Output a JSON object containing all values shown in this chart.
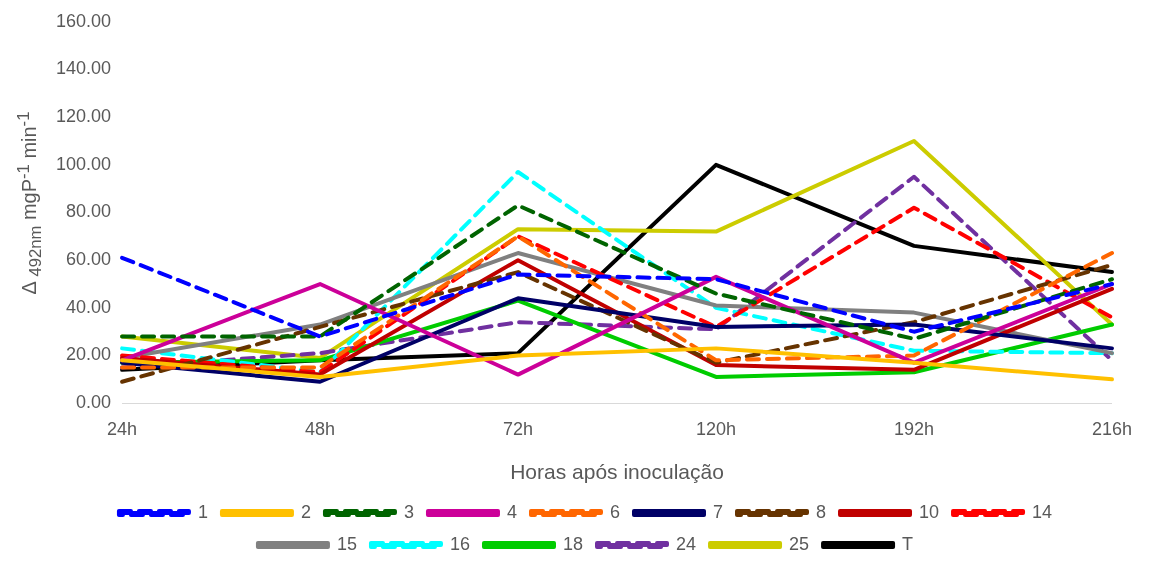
{
  "chart_data": {
    "type": "line",
    "xlabel": "Horas após inoculação",
    "ylabel": "Δ $_{492nm}$ mgP$^{-1}$ min$^{-1}$",
    "categories": [
      "24h",
      "48h",
      "72h",
      "120h",
      "192h",
      "216h"
    ],
    "ylim": [
      0,
      160
    ],
    "yticks": [
      {
        "value": 0,
        "label": "0.00"
      },
      {
        "value": 20,
        "label": "20.00"
      },
      {
        "value": 40,
        "label": "40.00"
      },
      {
        "value": 60,
        "label": "60.00"
      },
      {
        "value": 80,
        "label": "80.00"
      },
      {
        "value": 100,
        "label": "100.00"
      },
      {
        "value": 120,
        "label": "120.00"
      },
      {
        "value": 140,
        "label": "140.00"
      },
      {
        "value": 160,
        "label": "160.00"
      }
    ],
    "grid": false,
    "legend": "bottom",
    "marker": "none",
    "series": [
      {
        "name": "1",
        "color": "#0000ff",
        "line_style": "dashed",
        "values": [
          61,
          28,
          54,
          52,
          30,
          50
        ]
      },
      {
        "name": "2",
        "color": "#ffc000",
        "line_style": "solid",
        "values": [
          18,
          11,
          20,
          23,
          17,
          10
        ]
      },
      {
        "name": "3",
        "color": "#006400",
        "line_style": "dashed",
        "values": [
          28,
          28,
          83,
          46,
          27,
          52
        ]
      },
      {
        "name": "4",
        "color": "#cc0099",
        "line_style": "solid",
        "values": [
          18,
          50,
          12,
          53,
          17,
          50
        ]
      },
      {
        "name": "6",
        "color": "#ff6600",
        "line_style": "dashed",
        "values": [
          15,
          15,
          70,
          18,
          20,
          63
        ]
      },
      {
        "name": "7",
        "color": "#000066",
        "line_style": "solid",
        "values": [
          17,
          9,
          44,
          32,
          33,
          23
        ]
      },
      {
        "name": "8",
        "color": "#663300",
        "line_style": "dashed",
        "values": [
          9,
          32,
          55,
          17,
          34,
          58
        ]
      },
      {
        "name": "10",
        "color": "#c00000",
        "line_style": "solid",
        "values": [
          19,
          12,
          60,
          16,
          14,
          48
        ]
      },
      {
        "name": "14",
        "color": "#ff0000",
        "line_style": "dashed",
        "values": [
          20,
          13,
          70,
          32,
          82,
          36
        ]
      },
      {
        "name": "15",
        "color": "#808080",
        "line_style": "solid",
        "values": [
          19,
          33,
          63,
          41,
          38,
          21
        ]
      },
      {
        "name": "16",
        "color": "#00ffff",
        "line_style": "dashed",
        "values": [
          23,
          13,
          97,
          40,
          22,
          21
        ]
      },
      {
        "name": "18",
        "color": "#00cc00",
        "line_style": "solid",
        "values": [
          17,
          18,
          43,
          11,
          13,
          33
        ]
      },
      {
        "name": "24",
        "color": "#7030a0",
        "line_style": "dashed",
        "values": [
          15,
          21,
          34,
          31,
          95,
          18
        ]
      },
      {
        "name": "25",
        "color": "#cccc00",
        "line_style": "solid",
        "values": [
          28,
          19,
          73,
          72,
          110,
          33
        ]
      },
      {
        "name": "T",
        "color": "#000000",
        "line_style": "solid",
        "values": [
          14,
          18,
          21,
          100,
          66,
          55
        ]
      }
    ]
  }
}
